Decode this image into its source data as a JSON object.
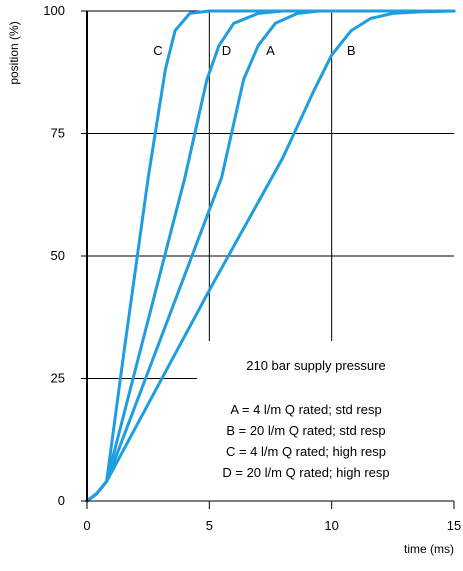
{
  "chart_data": {
    "type": "line",
    "title": "",
    "xlabel": "time (ms)",
    "ylabel": "position (%)",
    "xlim": [
      0,
      15
    ],
    "ylim": [
      0,
      100
    ],
    "xticks": [
      "0",
      "5",
      "10",
      "15"
    ],
    "yticks": [
      "0",
      "25",
      "50",
      "75",
      "100"
    ],
    "grid": true,
    "annotations": {
      "pressure": "210 bar supply pressure",
      "legend": [
        "A = 4 l/m Q rated; std resp",
        "B = 20 l/m Q rated; std resp",
        "C = 4 l/m Q rated; high resp",
        "D = 20 l/m Q rated; high resp"
      ]
    },
    "series": [
      {
        "name": "C",
        "label_at": [
          2.9,
          91
        ],
        "points": [
          [
            0,
            0
          ],
          [
            0.4,
            1.5
          ],
          [
            0.8,
            4
          ],
          [
            1.5,
            30
          ],
          [
            2.5,
            66
          ],
          [
            3.2,
            88
          ],
          [
            3.6,
            96
          ],
          [
            4.2,
            99.5
          ],
          [
            5,
            100
          ],
          [
            15,
            100
          ]
        ]
      },
      {
        "name": "D",
        "label_at": [
          5.7,
          91
        ],
        "points": [
          [
            0,
            0
          ],
          [
            0.4,
            1.5
          ],
          [
            0.8,
            4
          ],
          [
            2.5,
            37
          ],
          [
            4,
            66
          ],
          [
            4.9,
            86
          ],
          [
            5.4,
            93
          ],
          [
            6,
            97.5
          ],
          [
            7,
            99.5
          ],
          [
            8,
            100
          ],
          [
            15,
            100
          ]
        ]
      },
      {
        "name": "A",
        "label_at": [
          7.5,
          91
        ],
        "points": [
          [
            0,
            0
          ],
          [
            0.4,
            1.5
          ],
          [
            0.8,
            4
          ],
          [
            3,
            33
          ],
          [
            5.5,
            66
          ],
          [
            6.4,
            86
          ],
          [
            7,
            93
          ],
          [
            7.7,
            97.5
          ],
          [
            8.6,
            99.5
          ],
          [
            9.5,
            100
          ],
          [
            15,
            100
          ]
        ]
      },
      {
        "name": "B",
        "label_at": [
          10.8,
          91
        ],
        "points": [
          [
            0,
            0
          ],
          [
            0.4,
            1.5
          ],
          [
            0.8,
            4
          ],
          [
            5,
            43
          ],
          [
            8,
            70
          ],
          [
            9.3,
            84
          ],
          [
            10,
            91
          ],
          [
            10.8,
            96
          ],
          [
            11.6,
            98.5
          ],
          [
            12.5,
            99.5
          ],
          [
            13.5,
            99.8
          ],
          [
            15,
            100
          ]
        ]
      }
    ],
    "colors": {
      "series": "#1e9ddf",
      "axes": "#000000"
    }
  }
}
